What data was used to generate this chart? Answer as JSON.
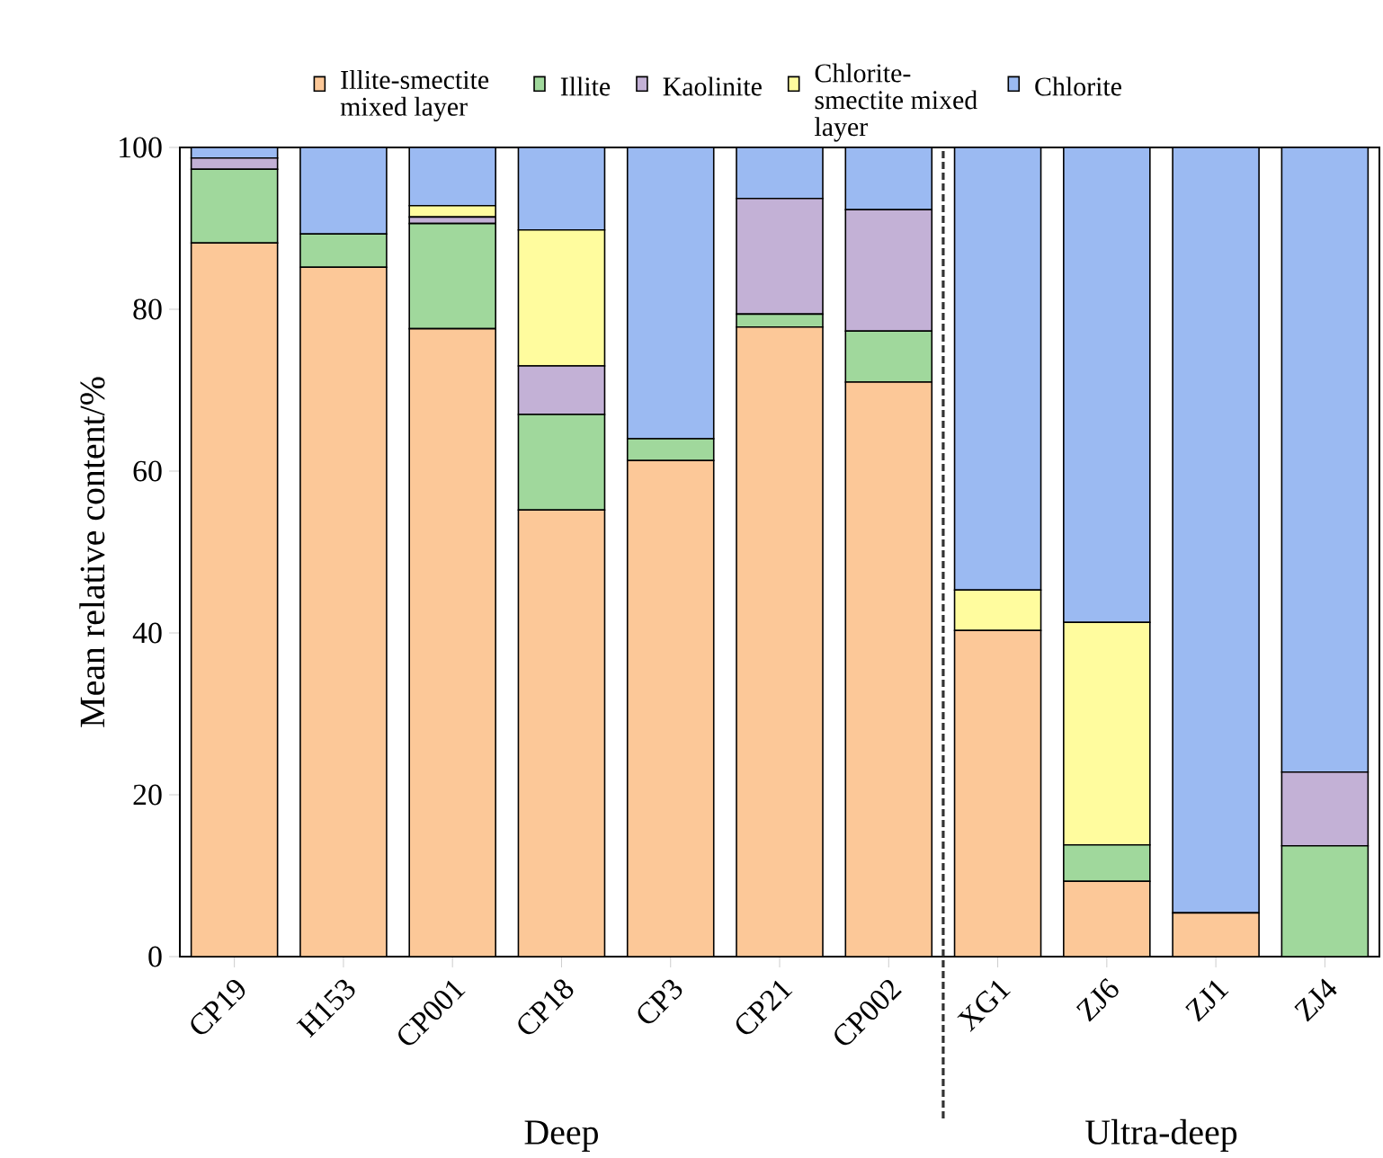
{
  "chart_data": {
    "type": "bar",
    "stacked": true,
    "ylabel": "Mean relative content/%",
    "categories": [
      "CP19",
      "H153",
      "CP001",
      "CP18",
      "CP3",
      "CP21",
      "CP002",
      "XG1",
      "ZJ6",
      "ZJ1",
      "ZJ4"
    ],
    "series": [
      {
        "name": "Illite-smectite mixed layer",
        "color": "#fcc898",
        "values": [
          88.2,
          85.2,
          77.6,
          55.2,
          61.3,
          77.8,
          71.0,
          40.3,
          9.3,
          5.4,
          0
        ]
      },
      {
        "name": "Illite",
        "color": "#a0d89c",
        "values": [
          9.1,
          4.1,
          13.0,
          11.8,
          2.7,
          1.6,
          6.3,
          0,
          4.5,
          0,
          13.7
        ]
      },
      {
        "name": "Kaolinite",
        "color": "#c3b1d6",
        "values": [
          1.4,
          0,
          0.8,
          6.0,
          0,
          14.3,
          15.0,
          0,
          0,
          0,
          9.1
        ]
      },
      {
        "name": "Chlorite-smectite mixed layer",
        "color": "#fffc9e",
        "values": [
          0,
          0,
          1.4,
          16.8,
          0,
          0,
          0,
          5.0,
          27.5,
          0,
          0
        ]
      },
      {
        "name": "Chlorite",
        "color": "#9bbaf2",
        "values": [
          1.3,
          10.7,
          7.2,
          10.2,
          36.0,
          6.3,
          7.7,
          54.7,
          58.7,
          94.6,
          77.2
        ]
      }
    ],
    "ylim": [
      0,
      100
    ],
    "yticks": [
      0,
      20,
      40,
      60,
      80,
      100
    ],
    "grid": false,
    "legend": "top",
    "annotations": [
      "Deep",
      "Ultra-deep"
    ]
  }
}
